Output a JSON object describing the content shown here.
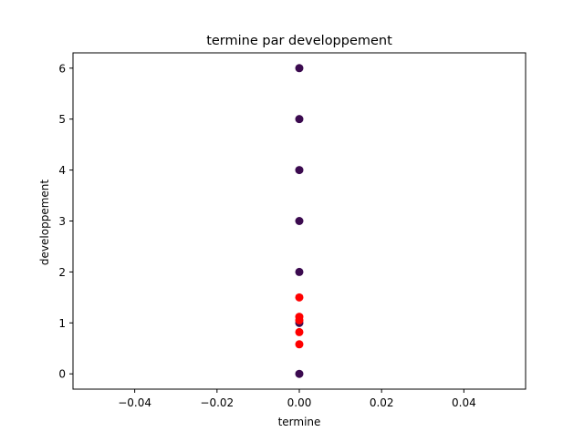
{
  "chart_data": {
    "type": "scatter",
    "title": "termine par developpement",
    "xlabel": "termine",
    "ylabel": "developpement",
    "xlim": [
      -0.055,
      0.055
    ],
    "ylim": [
      -0.3,
      6.3
    ],
    "xticks": [
      -0.04,
      -0.02,
      0.0,
      0.02,
      0.04
    ],
    "xtick_labels": [
      "−0.04",
      "−0.02",
      "0.00",
      "0.02",
      "0.04"
    ],
    "yticks": [
      0,
      1,
      2,
      3,
      4,
      5,
      6
    ],
    "ytick_labels": [
      "0",
      "1",
      "2",
      "3",
      "4",
      "5",
      "6"
    ],
    "grid": false,
    "series": [
      {
        "color": "#3b0a4f",
        "points": [
          {
            "x": 0,
            "y": 0
          },
          {
            "x": 0,
            "y": 1
          },
          {
            "x": 0,
            "y": 2
          },
          {
            "x": 0,
            "y": 3
          },
          {
            "x": 0,
            "y": 4
          },
          {
            "x": 0,
            "y": 5
          },
          {
            "x": 0,
            "y": 6
          }
        ]
      },
      {
        "color": "#ff0000",
        "points": [
          {
            "x": 0,
            "y": 0.58
          },
          {
            "x": 0,
            "y": 0.82
          },
          {
            "x": 0,
            "y": 1.05
          },
          {
            "x": 0,
            "y": 1.12
          },
          {
            "x": 0,
            "y": 1.5
          }
        ]
      }
    ]
  }
}
